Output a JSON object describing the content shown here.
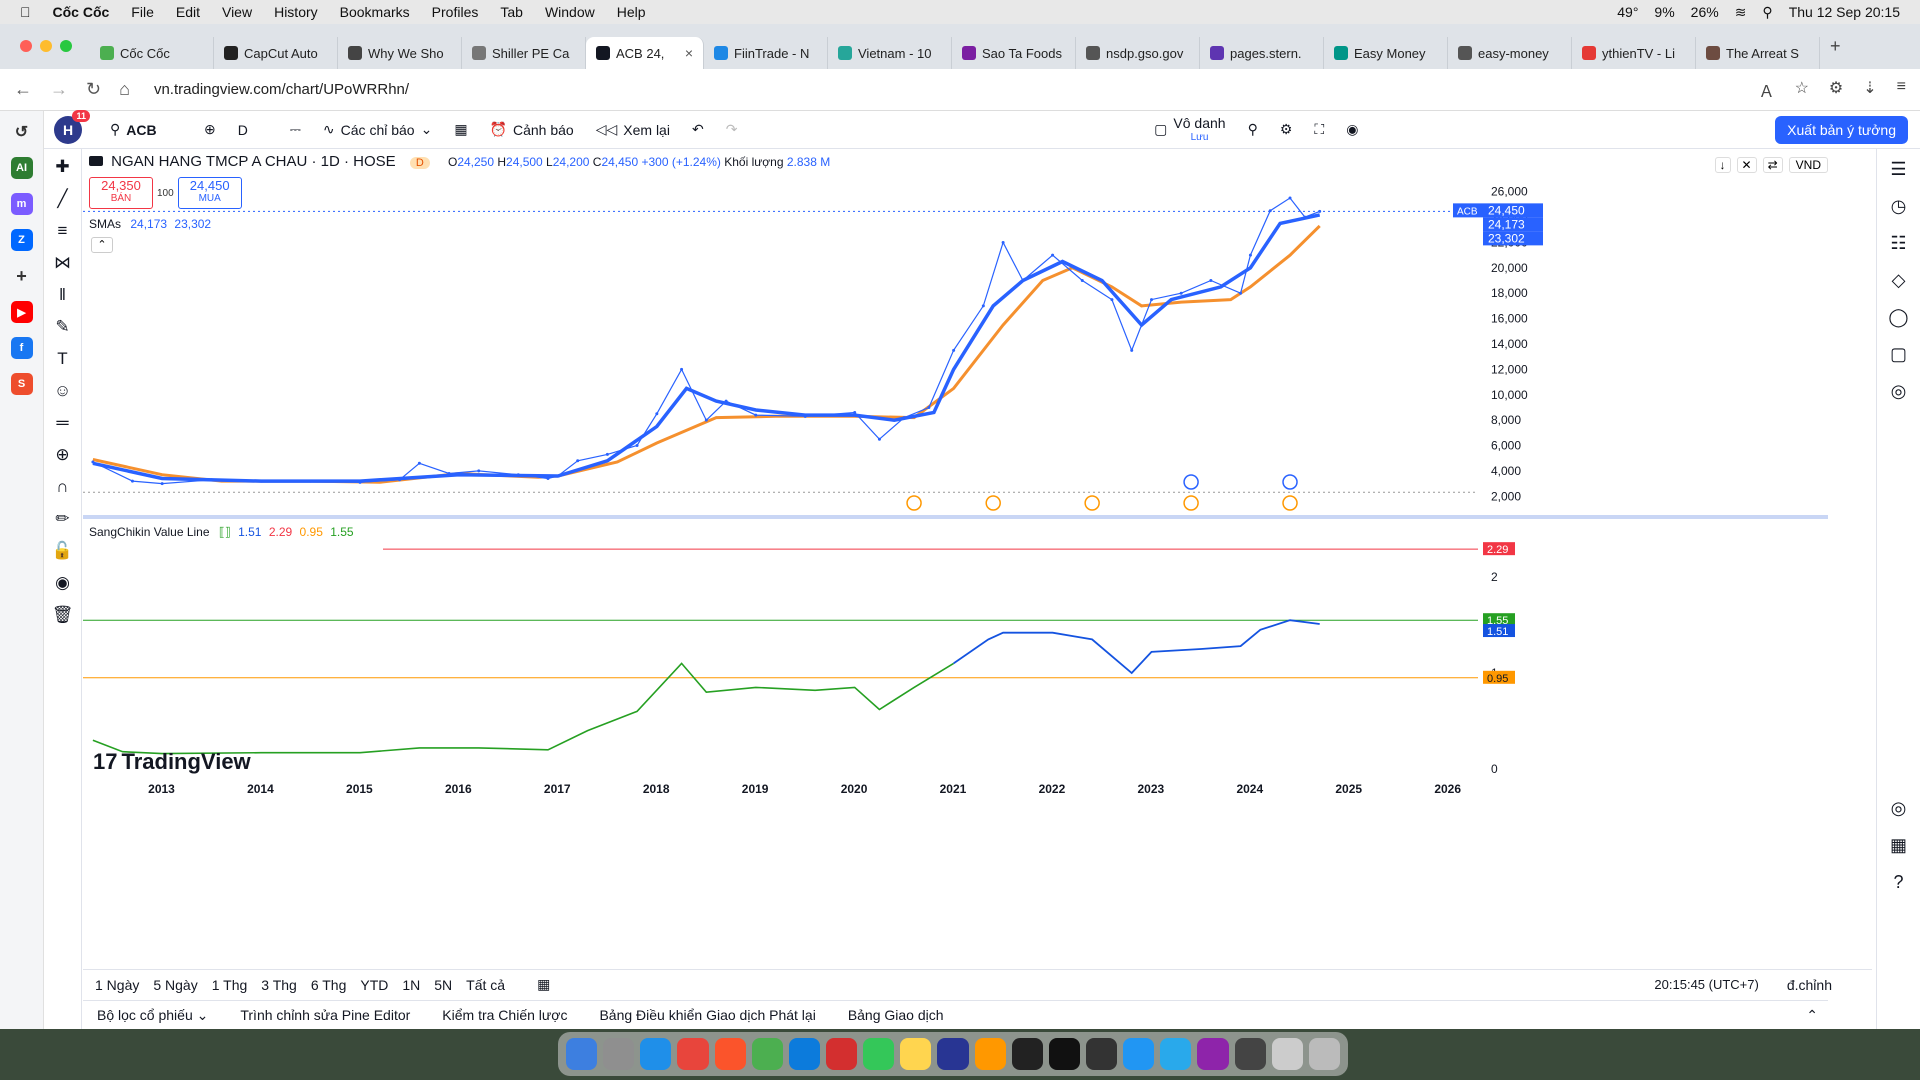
{
  "macos": {
    "app_name": "Cốc Cốc",
    "menus": [
      "File",
      "Edit",
      "View",
      "History",
      "Bookmarks",
      "Profiles",
      "Tab",
      "Window",
      "Help"
    ],
    "status": [
      "49°",
      "9%",
      "26%",
      "Thu 12 Sep 20:15"
    ]
  },
  "browser": {
    "tabs": [
      {
        "label": "Cốc Cốc",
        "color": "#4caf50"
      },
      {
        "label": "CapCut Auto",
        "color": "#222"
      },
      {
        "label": "Why We Sho",
        "color": "#444"
      },
      {
        "label": "Shiller PE Ca",
        "color": "#777"
      },
      {
        "label": "ACB 24,",
        "color": "#131722"
      },
      {
        "label": "FiinTrade - N",
        "color": "#1e88e5"
      },
      {
        "label": "Vietnam - 10",
        "color": "#26a69a"
      },
      {
        "label": "Sao Ta Foods",
        "color": "#7b1fa2"
      },
      {
        "label": "nsdp.gso.gov",
        "color": "#555"
      },
      {
        "label": "pages.stern.",
        "color": "#5e35b1"
      },
      {
        "label": "Easy Money",
        "color": "#009688"
      },
      {
        "label": "easy-money",
        "color": "#555"
      },
      {
        "label": "ythienTV - Li",
        "color": "#e53935"
      },
      {
        "label": "The Arreat S",
        "color": "#6d4c41"
      }
    ],
    "url": "vn.tradingview.com/chart/UPoWRRhn/"
  },
  "tv": {
    "avatar_letter": "H",
    "avatar_badge": "11",
    "symbol": "ACB",
    "interval": "D",
    "indicators_label": "Các chỉ báo",
    "alerts_label": "Cảnh báo",
    "replay_label": "Xem lại",
    "layout_name": "Vô danh",
    "layout_sub": "Lưu",
    "publish_label": "Xuất bản ý tưởng",
    "title": "NGAN HANG TMCP A CHAU · 1D · HOSE",
    "ohlc": {
      "o": "24,250",
      "h": "24,500",
      "l": "24,200",
      "c": "24,450",
      "chg": "+300 (+1.24%)",
      "vol_label": "Khối lượng",
      "vol": "2.838 M"
    },
    "sell_price": "24,350",
    "sell_label": "BÁN",
    "spread": "100",
    "buy_price": "24,450",
    "buy_label": "MUA",
    "sma_label": "SMAs",
    "sma1": "24,173",
    "sma2": "23,302",
    "ind2_label": "SangChikin Value Line",
    "ind2_values": [
      "1.51",
      "2.29",
      "0.95",
      "1.55"
    ],
    "currency": "VND",
    "price_tag": "24,450",
    "symbol_tag": "ACB",
    "ranges": [
      "1 Ngày",
      "5 Ngày",
      "1 Thg",
      "3 Thg",
      "6 Thg",
      "YTD",
      "1N",
      "5N",
      "Tất cả"
    ],
    "clock": "20:15:45 (UTC+7)",
    "adjust": "đ.chỉnh",
    "panels": [
      "Bộ lọc cổ phiếu",
      "Trình chỉnh sửa Pine Editor",
      "Kiểm tra Chiến lược",
      "Bảng Điều khiển Giao dịch Phát lại",
      "Bảng Giao dịch"
    ],
    "watermark": "TradingView"
  },
  "chart_data": {
    "type": "line",
    "x_years": [
      "2013",
      "2014",
      "2015",
      "2016",
      "2017",
      "2018",
      "2019",
      "2020",
      "2021",
      "2022",
      "2023",
      "2024",
      "2025",
      "2026"
    ],
    "y_ticks": [
      "26,000",
      "24,000",
      "22,000",
      "20,000",
      "18,000",
      "16,000",
      "14,000",
      "12,000",
      "10,000",
      "8,000",
      "6,000",
      "4,000",
      "2,000"
    ],
    "ind_ticks": [
      "2",
      "1",
      "0"
    ],
    "ylim": [
      1000,
      27000
    ],
    "ind_ylim": [
      0,
      2.5
    ],
    "levels": {
      "high": 2.29,
      "upper": 1.55,
      "current": 1.51,
      "low": 0.95
    },
    "colors": {
      "price": "#2962ff",
      "sma_fast": "#2962ff",
      "sma_slow": "#f5902e",
      "green": "#26a022",
      "blue": "#1453e0",
      "red": "#f23645",
      "orange": "#ff9800"
    },
    "price_series": [
      {
        "t": 2012.3,
        "v": 4700
      },
      {
        "t": 2012.7,
        "v": 3200
      },
      {
        "t": 2013.0,
        "v": 3000
      },
      {
        "t": 2013.5,
        "v": 3300
      },
      {
        "t": 2014.0,
        "v": 3200
      },
      {
        "t": 2014.5,
        "v": 3200
      },
      {
        "t": 2015.0,
        "v": 3100
      },
      {
        "t": 2015.4,
        "v": 3300
      },
      {
        "t": 2015.6,
        "v": 4600
      },
      {
        "t": 2015.9,
        "v": 3800
      },
      {
        "t": 2016.2,
        "v": 4000
      },
      {
        "t": 2016.6,
        "v": 3700
      },
      {
        "t": 2016.9,
        "v": 3400
      },
      {
        "t": 2017.0,
        "v": 3600
      },
      {
        "t": 2017.2,
        "v": 4800
      },
      {
        "t": 2017.5,
        "v": 5300
      },
      {
        "t": 2017.8,
        "v": 6000
      },
      {
        "t": 2018.0,
        "v": 8500
      },
      {
        "t": 2018.25,
        "v": 12000
      },
      {
        "t": 2018.5,
        "v": 8000
      },
      {
        "t": 2018.7,
        "v": 9500
      },
      {
        "t": 2019.0,
        "v": 8400
      },
      {
        "t": 2019.5,
        "v": 8300
      },
      {
        "t": 2020.0,
        "v": 8600
      },
      {
        "t": 2020.25,
        "v": 6500
      },
      {
        "t": 2020.5,
        "v": 8200
      },
      {
        "t": 2020.75,
        "v": 9000
      },
      {
        "t": 2021.0,
        "v": 13500
      },
      {
        "t": 2021.3,
        "v": 17000
      },
      {
        "t": 2021.5,
        "v": 22000
      },
      {
        "t": 2021.7,
        "v": 19000
      },
      {
        "t": 2022.0,
        "v": 21000
      },
      {
        "t": 2022.3,
        "v": 19000
      },
      {
        "t": 2022.6,
        "v": 17500
      },
      {
        "t": 2022.8,
        "v": 13500
      },
      {
        "t": 2023.0,
        "v": 17500
      },
      {
        "t": 2023.3,
        "v": 18000
      },
      {
        "t": 2023.6,
        "v": 19000
      },
      {
        "t": 2023.9,
        "v": 18000
      },
      {
        "t": 2024.0,
        "v": 21000
      },
      {
        "t": 2024.2,
        "v": 24500
      },
      {
        "t": 2024.4,
        "v": 25500
      },
      {
        "t": 2024.55,
        "v": 24000
      },
      {
        "t": 2024.7,
        "v": 24450
      }
    ],
    "sma_fast_series": [
      {
        "t": 2012.3,
        "v": 4600
      },
      {
        "t": 2013.0,
        "v": 3400
      },
      {
        "t": 2014.0,
        "v": 3200
      },
      {
        "t": 2015.0,
        "v": 3200
      },
      {
        "t": 2016.0,
        "v": 3700
      },
      {
        "t": 2017.0,
        "v": 3600
      },
      {
        "t": 2017.5,
        "v": 4800
      },
      {
        "t": 2018.0,
        "v": 7500
      },
      {
        "t": 2018.3,
        "v": 10500
      },
      {
        "t": 2018.6,
        "v": 9500
      },
      {
        "t": 2019.0,
        "v": 8800
      },
      {
        "t": 2019.5,
        "v": 8400
      },
      {
        "t": 2020.0,
        "v": 8400
      },
      {
        "t": 2020.4,
        "v": 8000
      },
      {
        "t": 2020.8,
        "v": 8600
      },
      {
        "t": 2021.0,
        "v": 12000
      },
      {
        "t": 2021.4,
        "v": 17000
      },
      {
        "t": 2021.7,
        "v": 19000
      },
      {
        "t": 2022.1,
        "v": 20500
      },
      {
        "t": 2022.5,
        "v": 19000
      },
      {
        "t": 2022.9,
        "v": 15500
      },
      {
        "t": 2023.2,
        "v": 17500
      },
      {
        "t": 2023.7,
        "v": 18500
      },
      {
        "t": 2024.0,
        "v": 20000
      },
      {
        "t": 2024.3,
        "v": 23500
      },
      {
        "t": 2024.7,
        "v": 24173
      }
    ],
    "sma_slow_series": [
      {
        "t": 2012.3,
        "v": 4900
      },
      {
        "t": 2013.0,
        "v": 3700
      },
      {
        "t": 2013.6,
        "v": 3200
      },
      {
        "t": 2014.5,
        "v": 3200
      },
      {
        "t": 2015.2,
        "v": 3100
      },
      {
        "t": 2016.0,
        "v": 3800
      },
      {
        "t": 2016.8,
        "v": 3500
      },
      {
        "t": 2017.0,
        "v": 3600
      },
      {
        "t": 2017.6,
        "v": 4700
      },
      {
        "t": 2018.0,
        "v": 6200
      },
      {
        "t": 2018.6,
        "v": 8200
      },
      {
        "t": 2019.2,
        "v": 8300
      },
      {
        "t": 2020.0,
        "v": 8300
      },
      {
        "t": 2020.6,
        "v": 8200
      },
      {
        "t": 2021.0,
        "v": 10500
      },
      {
        "t": 2021.5,
        "v": 15500
      },
      {
        "t": 2021.9,
        "v": 19000
      },
      {
        "t": 2022.2,
        "v": 20000
      },
      {
        "t": 2022.6,
        "v": 18500
      },
      {
        "t": 2022.9,
        "v": 17000
      },
      {
        "t": 2023.3,
        "v": 17300
      },
      {
        "t": 2023.8,
        "v": 17500
      },
      {
        "t": 2024.0,
        "v": 18500
      },
      {
        "t": 2024.4,
        "v": 21000
      },
      {
        "t": 2024.7,
        "v": 23302
      }
    ],
    "ind_series": [
      {
        "t": 2012.3,
        "v": 0.3
      },
      {
        "t": 2012.6,
        "v": 0.18
      },
      {
        "t": 2013.0,
        "v": 0.16
      },
      {
        "t": 2014.0,
        "v": 0.17
      },
      {
        "t": 2015.0,
        "v": 0.17
      },
      {
        "t": 2015.6,
        "v": 0.22
      },
      {
        "t": 2016.2,
        "v": 0.22
      },
      {
        "t": 2016.9,
        "v": 0.2
      },
      {
        "t": 2017.3,
        "v": 0.4
      },
      {
        "t": 2017.8,
        "v": 0.6
      },
      {
        "t": 2018.25,
        "v": 1.1
      },
      {
        "t": 2018.5,
        "v": 0.8
      },
      {
        "t": 2019.0,
        "v": 0.85
      },
      {
        "t": 2019.6,
        "v": 0.82
      },
      {
        "t": 2020.0,
        "v": 0.85
      },
      {
        "t": 2020.25,
        "v": 0.62
      },
      {
        "t": 2020.6,
        "v": 0.85
      },
      {
        "t": 2021.0,
        "v": 1.1
      },
      {
        "t": 2021.35,
        "v": 1.35
      },
      {
        "t": 2021.5,
        "v": 1.42
      },
      {
        "t": 2022.0,
        "v": 1.42
      },
      {
        "t": 2022.4,
        "v": 1.35
      },
      {
        "t": 2022.8,
        "v": 1.0
      },
      {
        "t": 2023.0,
        "v": 1.22
      },
      {
        "t": 2023.5,
        "v": 1.25
      },
      {
        "t": 2023.9,
        "v": 1.28
      },
      {
        "t": 2024.1,
        "v": 1.45
      },
      {
        "t": 2024.4,
        "v": 1.55
      },
      {
        "t": 2024.7,
        "v": 1.51
      }
    ],
    "ind_green_until": 2021.05,
    "events_s": [
      2020.6,
      2021.4,
      2022.4,
      2023.4,
      2024.4
    ],
    "events_d": [
      2023.4,
      2024.4
    ]
  }
}
